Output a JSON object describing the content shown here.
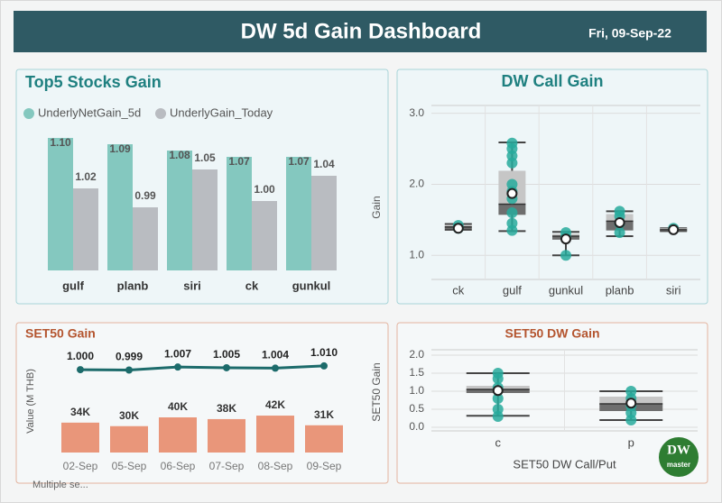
{
  "header": {
    "title": "DW 5d Gain Dashboard",
    "date": "Fri, 09-Sep-22"
  },
  "slicer": "Multiple se...",
  "logo": {
    "top": "DW",
    "bottom": "master"
  },
  "chart_data": [
    {
      "type": "bar",
      "title": "Top5 Stocks Gain",
      "categories": [
        "gulf",
        "planb",
        "siri",
        "ck",
        "gunkul"
      ],
      "ylim": [
        0.89,
        1.1
      ],
      "series": [
        {
          "name": "UnderlyNetGain_5d",
          "color": "#84c8bf",
          "values": [
            1.1,
            1.09,
            1.08,
            1.07,
            1.07
          ],
          "value_labels": [
            "1.10",
            "1.09",
            "1.08",
            "1.07",
            "1.07"
          ]
        },
        {
          "name": "UnderlyGain_Today",
          "color": "#b9bcc1",
          "values": [
            1.02,
            0.99,
            1.05,
            1.0,
            1.04
          ],
          "value_labels": [
            "1.02",
            "0.99",
            "1.05",
            "1.00",
            "1.04"
          ]
        }
      ]
    },
    {
      "type": "box",
      "title": "DW Call Gain",
      "y_label": "Gain",
      "categories": [
        "ck",
        "gulf",
        "gunkul",
        "planb",
        "siri"
      ],
      "ylim": [
        0.66,
        3.11
      ],
      "yticks": [
        {
          "value": 1,
          "label": "1.0"
        },
        {
          "value": 2,
          "label": "2.0"
        },
        {
          "value": 3,
          "label": "3.0"
        }
      ],
      "point_color": "#27aa9c",
      "boxes": [
        {
          "min": 1.36,
          "q1": 1.37,
          "median": 1.4,
          "q3": 1.43,
          "max": 1.44,
          "mean": 1.38,
          "points": [
            1.38,
            1.42
          ]
        },
        {
          "min": 1.34,
          "q1": 1.57,
          "median": 1.72,
          "q3": 2.19,
          "max": 2.59,
          "mean": 1.87,
          "points": [
            2.58,
            2.5,
            2.4,
            2.3,
            2.0,
            1.9,
            1.8,
            1.6,
            1.45,
            1.35
          ]
        },
        {
          "min": 1.0,
          "q1": 1.22,
          "median": 1.27,
          "q3": 1.3,
          "max": 1.33,
          "mean": 1.23,
          "points": [
            1.32,
            1.25,
            1.0
          ]
        },
        {
          "min": 1.27,
          "q1": 1.35,
          "median": 1.48,
          "q3": 1.58,
          "max": 1.62,
          "mean": 1.46,
          "points": [
            1.62,
            1.55,
            1.45,
            1.32
          ]
        },
        {
          "min": 1.34,
          "q1": 1.34,
          "median": 1.36,
          "q3": 1.38,
          "max": 1.38,
          "mean": 1.36,
          "points": [
            1.38
          ]
        }
      ]
    },
    {
      "type": "combo",
      "title": "SET50 Gain",
      "y_label": "Value (M THB)",
      "categories": [
        "02-Sep",
        "05-Sep",
        "06-Sep",
        "07-Sep",
        "08-Sep",
        "09-Sep"
      ],
      "ylim": [
        0,
        120000
      ],
      "y2lim": [
        0.78,
        1.06
      ],
      "series": [
        {
          "type": "line",
          "axis": "y2",
          "color": "#1c6b6b",
          "values": [
            1.0,
            0.999,
            1.007,
            1.005,
            1.004,
            1.01
          ],
          "value_labels": [
            "1.000",
            "0.999",
            "1.007",
            "1.005",
            "1.004",
            "1.010"
          ]
        },
        {
          "type": "bar",
          "color": "#e9967a",
          "values": [
            34000,
            30000,
            40000,
            38000,
            42000,
            31000
          ],
          "value_labels": [
            "34K",
            "30K",
            "40K",
            "38K",
            "42K",
            "31K"
          ]
        }
      ]
    },
    {
      "type": "box",
      "title": "SET50 DW Gain",
      "y_label": "SET50 Gain",
      "x_label": "SET50 DW Call/Put",
      "categories": [
        "c",
        "p"
      ],
      "ylim": [
        -0.1,
        2.15
      ],
      "yticks": [
        {
          "value": 0,
          "label": "0.0"
        },
        {
          "value": 0.5,
          "label": "0.5"
        },
        {
          "value": 1,
          "label": "1.0"
        },
        {
          "value": 1.5,
          "label": "1.5"
        },
        {
          "value": 2,
          "label": "2.0"
        }
      ],
      "point_color": "#27aa9c",
      "boxes": [
        {
          "min": 0.32,
          "q1": 0.95,
          "median": 1.05,
          "q3": 1.15,
          "max": 1.5,
          "mean": 1.02,
          "points": [
            1.5,
            1.35,
            1.1,
            0.8,
            0.5,
            0.3
          ]
        },
        {
          "min": 0.2,
          "q1": 0.45,
          "median": 0.65,
          "q3": 0.85,
          "max": 1.0,
          "mean": 0.67,
          "points": [
            1.0,
            0.8,
            0.6,
            0.4,
            0.2
          ]
        }
      ]
    }
  ]
}
